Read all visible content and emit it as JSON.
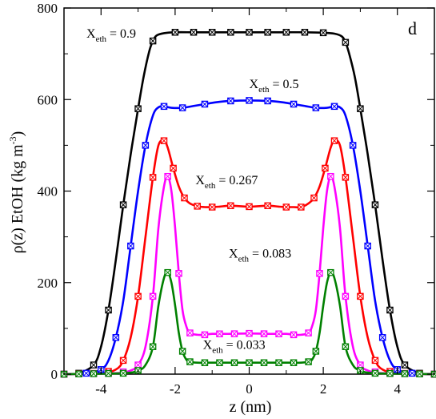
{
  "chart_data": {
    "type": "line",
    "panel_label": "d",
    "xlabel": "z  (nm)",
    "ylabel": "ρ(z)  EtOH  (kg m",
    "ylabel_sup": "-3",
    "ylabel_close": ")",
    "xlim": [
      -5,
      5
    ],
    "ylim": [
      0,
      800
    ],
    "x_ticks": [
      -4,
      -2,
      0,
      2,
      4
    ],
    "y_ticks": [
      0,
      200,
      400,
      600,
      800
    ],
    "x_tick_labels": [
      "-4",
      "-2",
      "0",
      "2",
      "4"
    ],
    "y_tick_labels": [
      "0",
      "200",
      "400",
      "600",
      "800"
    ],
    "grid": false,
    "series": [
      {
        "label_main": "X",
        "label_sub": "eth",
        "label_value": " = 0.9",
        "color": "#000000",
        "x": [
          -5.0,
          -4.6,
          -4.2,
          -4.0,
          -3.8,
          -3.6,
          -3.4,
          -3.2,
          -3.0,
          -2.85,
          -2.7,
          -2.6,
          -2.5,
          -2.3,
          -2.0,
          -1.5,
          -1.0,
          -0.5,
          0.0,
          0.5,
          1.0,
          1.5,
          2.0,
          2.3,
          2.5,
          2.6,
          2.7,
          2.85,
          3.0,
          3.2,
          3.4,
          3.6,
          3.8,
          4.0,
          4.2,
          4.6,
          5.0
        ],
        "y": [
          0,
          2,
          20,
          60,
          140,
          250,
          370,
          480,
          580,
          650,
          705,
          728,
          740,
          745,
          747,
          747,
          747,
          747,
          747,
          747,
          747,
          747,
          746,
          744,
          738,
          725,
          700,
          650,
          580,
          480,
          370,
          250,
          140,
          60,
          20,
          2,
          0
        ]
      },
      {
        "label_main": "X",
        "label_sub": "eth",
        "label_value": " = 0.5",
        "color": "#0000ff",
        "x": [
          -5.0,
          -4.4,
          -4.0,
          -3.8,
          -3.6,
          -3.4,
          -3.2,
          -3.0,
          -2.8,
          -2.6,
          -2.45,
          -2.3,
          -2.1,
          -1.8,
          -1.5,
          -1.2,
          -0.9,
          -0.5,
          0.0,
          0.5,
          0.9,
          1.2,
          1.5,
          1.8,
          2.1,
          2.3,
          2.45,
          2.6,
          2.8,
          3.0,
          3.2,
          3.4,
          3.6,
          3.8,
          4.0,
          4.4,
          5.0
        ],
        "y": [
          0,
          2,
          10,
          30,
          80,
          160,
          280,
          400,
          500,
          565,
          583,
          585,
          582,
          582,
          586,
          590,
          594,
          597,
          598,
          597,
          594,
          590,
          586,
          582,
          582,
          585,
          583,
          565,
          500,
          400,
          280,
          160,
          80,
          30,
          10,
          2,
          0
        ]
      },
      {
        "label_main": "X",
        "label_sub": "eth",
        "label_value": " = 0.267",
        "color": "#ff0000",
        "x": [
          -5.0,
          -4.0,
          -3.6,
          -3.4,
          -3.2,
          -3.0,
          -2.8,
          -2.6,
          -2.45,
          -2.3,
          -2.2,
          -2.05,
          -1.9,
          -1.75,
          -1.6,
          -1.4,
          -1.2,
          -1.0,
          -0.8,
          -0.5,
          0.0,
          0.5,
          0.8,
          1.0,
          1.2,
          1.4,
          1.6,
          1.75,
          1.9,
          2.05,
          2.2,
          2.3,
          2.45,
          2.6,
          2.8,
          3.0,
          3.2,
          3.4,
          3.6,
          4.0,
          5.0
        ],
        "y": [
          0,
          2,
          10,
          30,
          80,
          170,
          300,
          430,
          500,
          510,
          495,
          450,
          410,
          385,
          373,
          367,
          365,
          365,
          366,
          368,
          366,
          368,
          366,
          365,
          365,
          365,
          373,
          385,
          410,
          450,
          495,
          510,
          500,
          430,
          300,
          170,
          80,
          30,
          10,
          2,
          0
        ]
      },
      {
        "label_main": "X",
        "label_sub": "eth",
        "label_value": " = 0.083",
        "color": "#ff00ff",
        "x": [
          -5.0,
          -3.6,
          -3.2,
          -3.0,
          -2.8,
          -2.6,
          -2.45,
          -2.3,
          -2.2,
          -2.1,
          -2.0,
          -1.9,
          -1.8,
          -1.7,
          -1.6,
          -1.4,
          -1.2,
          -1.0,
          -0.5,
          0.0,
          0.5,
          1.0,
          1.2,
          1.4,
          1.6,
          1.7,
          1.8,
          1.9,
          2.0,
          2.1,
          2.2,
          2.3,
          2.45,
          2.6,
          2.8,
          3.0,
          3.2,
          3.6,
          5.0
        ],
        "y": [
          0,
          2,
          8,
          20,
          60,
          170,
          320,
          410,
          432,
          400,
          320,
          220,
          140,
          105,
          90,
          86,
          86,
          88,
          88,
          89,
          88,
          88,
          86,
          86,
          90,
          105,
          140,
          220,
          320,
          400,
          432,
          410,
          320,
          170,
          60,
          20,
          8,
          2,
          0
        ]
      },
      {
        "label_main": "X",
        "label_sub": "eth",
        "label_value": " = 0.033",
        "color": "#008000",
        "x": [
          -5.0,
          -3.4,
          -3.0,
          -2.8,
          -2.6,
          -2.45,
          -2.3,
          -2.2,
          -2.1,
          -2.0,
          -1.9,
          -1.8,
          -1.7,
          -1.6,
          -1.4,
          -1.2,
          -1.0,
          -0.5,
          0.0,
          0.5,
          1.0,
          1.2,
          1.4,
          1.6,
          1.7,
          1.8,
          1.9,
          2.0,
          2.1,
          2.2,
          2.3,
          2.45,
          2.6,
          2.8,
          3.0,
          3.4,
          5.0
        ],
        "y": [
          0,
          2,
          8,
          20,
          60,
          150,
          210,
          222,
          200,
          150,
          90,
          50,
          32,
          27,
          25,
          25,
          25,
          25,
          25,
          25,
          25,
          25,
          25,
          27,
          32,
          50,
          90,
          150,
          200,
          222,
          210,
          150,
          60,
          20,
          8,
          2,
          0
        ]
      }
    ],
    "markers": [
      {
        "series": 0,
        "x": [
          -5.0,
          -4.6,
          -4.2,
          -3.8,
          -3.4,
          -3.0,
          -2.6,
          -2.0,
          -1.5,
          -1.0,
          -0.5,
          0.0,
          0.5,
          1.0,
          1.5,
          2.0,
          2.6,
          3.0,
          3.4,
          3.8,
          4.2,
          4.6,
          5.0
        ]
      },
      {
        "series": 1,
        "x": [
          -5.0,
          -4.4,
          -4.0,
          -3.6,
          -3.2,
          -2.8,
          -2.3,
          -1.8,
          -1.2,
          -0.5,
          0.0,
          0.5,
          1.2,
          1.8,
          2.3,
          2.8,
          3.2,
          3.6,
          4.0,
          4.4,
          5.0
        ]
      },
      {
        "series": 2,
        "x": [
          -5.0,
          -4.6,
          -4.2,
          -3.8,
          -3.4,
          -3.0,
          -2.6,
          -2.3,
          -2.05,
          -1.75,
          -1.4,
          -1.0,
          -0.5,
          0.0,
          0.5,
          1.0,
          1.4,
          1.75,
          2.05,
          2.3,
          2.6,
          3.0,
          3.4,
          3.8,
          4.2,
          4.6,
          5.0
        ]
      },
      {
        "series": 3,
        "x": [
          -5.0,
          -4.6,
          -4.2,
          -3.8,
          -3.4,
          -3.0,
          -2.6,
          -2.2,
          -1.9,
          -1.6,
          -1.2,
          -0.8,
          -0.4,
          0.0,
          0.4,
          0.8,
          1.2,
          1.6,
          1.9,
          2.2,
          2.6,
          3.0,
          3.4,
          3.8,
          4.2,
          4.6,
          5.0
        ]
      },
      {
        "series": 4,
        "x": [
          -5.0,
          -4.6,
          -4.2,
          -3.8,
          -3.4,
          -3.0,
          -2.6,
          -2.2,
          -1.8,
          -1.6,
          -1.2,
          -0.8,
          -0.4,
          0.0,
          0.4,
          0.8,
          1.2,
          1.6,
          1.8,
          2.2,
          2.6,
          3.0,
          3.4,
          3.8,
          4.2,
          4.6,
          5.0
        ]
      }
    ],
    "annotations_at": [
      {
        "series": 0,
        "x": -5.0,
        "y": 735,
        "anchor": "start"
      },
      {
        "series": 1,
        "x": 0.0,
        "y": 625,
        "anchor": "start"
      },
      {
        "series": 2,
        "x": -1.45,
        "y": 415,
        "anchor": "start"
      },
      {
        "series": 3,
        "x": -0.55,
        "y": 255,
        "anchor": "start"
      },
      {
        "series": 4,
        "x": -1.25,
        "y": 55,
        "anchor": "start"
      }
    ]
  }
}
